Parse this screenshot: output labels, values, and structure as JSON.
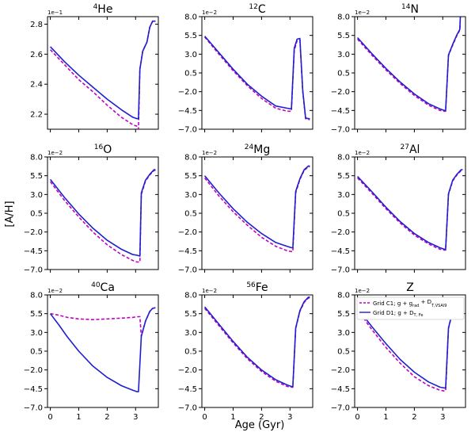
{
  "figure": {
    "xlabel": "Age (Gyr)",
    "ylabel": "[A/H]"
  },
  "legend": {
    "location": "top-right of panel Z",
    "entries": [
      {
        "label_main": "Grid C1; g + g",
        "label_sub1": "rad",
        "label_mid": " + D",
        "label_sub2": "T,VSAl9",
        "color": "#c000c0",
        "dash": "dashed"
      },
      {
        "label_main": "Grid D1; g + D",
        "label_sub1": "T, Fe",
        "label_mid": "",
        "label_sub2": "",
        "color": "#1f1fd0",
        "dash": "solid"
      }
    ]
  },
  "colors": {
    "grid_c1": "#c000c0",
    "grid_d1": "#1f1fd0"
  },
  "chart_data": [
    {
      "type": "line",
      "title_sup": "4",
      "title_base": "He",
      "multiplier": "1e−1",
      "xlim": [
        -0.1,
        3.8
      ],
      "ylim": [
        2.1,
        2.85
      ],
      "yticks": [
        2.2,
        2.4,
        2.6,
        2.8
      ],
      "ytick_labels": [
        "2.2",
        "2.4",
        "2.6",
        "2.8"
      ],
      "xticks": [
        0,
        1,
        2,
        3
      ],
      "xtick_labels": [
        "",
        "",
        "",
        ""
      ],
      "series": [
        {
          "key": "grid_c1",
          "x": [
            0,
            0.5,
            1.0,
            1.5,
            2.0,
            2.5,
            2.9,
            3.05,
            3.1,
            3.15,
            3.25,
            3.4,
            3.5,
            3.6,
            3.7
          ],
          "y": [
            2.63,
            2.53,
            2.43,
            2.35,
            2.26,
            2.18,
            2.13,
            2.12,
            2.1,
            2.5,
            2.62,
            2.68,
            2.78,
            2.82,
            2.82
          ]
        },
        {
          "key": "grid_d1",
          "x": [
            0,
            0.5,
            1.0,
            1.5,
            2.0,
            2.5,
            2.9,
            3.05,
            3.1,
            3.15,
            3.25,
            3.4,
            3.5,
            3.6,
            3.7
          ],
          "y": [
            2.65,
            2.55,
            2.46,
            2.38,
            2.3,
            2.23,
            2.18,
            2.17,
            2.17,
            2.5,
            2.62,
            2.68,
            2.78,
            2.82,
            2.82
          ]
        }
      ]
    },
    {
      "type": "line",
      "title_sup": "12",
      "title_base": "C",
      "multiplier": "1e−2",
      "xlim": [
        -0.1,
        3.8
      ],
      "ylim": [
        -7.0,
        8.0
      ],
      "yticks": [
        -7.0,
        -4.5,
        -2.0,
        0.5,
        3.0,
        5.5,
        8.0
      ],
      "ytick_labels": [
        "−7.0",
        "−4.5",
        "−2.0",
        "0.5",
        "3.0",
        "5.5",
        "8.0"
      ],
      "xticks": [
        0,
        1,
        2,
        3
      ],
      "xtick_labels": [
        "",
        "",
        "",
        ""
      ],
      "series": [
        {
          "key": "grid_c1",
          "x": [
            0,
            0.5,
            1.0,
            1.5,
            2.0,
            2.5,
            2.9,
            3.05,
            3.15,
            3.25,
            3.35,
            3.45,
            3.55,
            3.65,
            3.7
          ],
          "y": [
            5.3,
            3.0,
            0.8,
            -1.2,
            -2.9,
            -4.2,
            -4.6,
            -4.6,
            3.5,
            4.8,
            4.9,
            -2.0,
            -5.6,
            -5.7,
            -5.7
          ]
        },
        {
          "key": "grid_d1",
          "x": [
            0,
            0.5,
            1.0,
            1.5,
            2.0,
            2.5,
            2.9,
            3.05,
            3.15,
            3.25,
            3.35,
            3.45,
            3.55,
            3.65,
            3.7
          ],
          "y": [
            5.4,
            3.2,
            1.0,
            -1.0,
            -2.6,
            -3.9,
            -4.2,
            -4.3,
            3.8,
            5.0,
            5.1,
            -1.8,
            -5.5,
            -5.6,
            -5.6
          ]
        }
      ]
    },
    {
      "type": "line",
      "title_sup": "14",
      "title_base": "N",
      "multiplier": "1e−2",
      "xlim": [
        -0.1,
        3.8
      ],
      "ylim": [
        -7.0,
        8.0
      ],
      "yticks": [
        -7.0,
        -4.5,
        -2.0,
        0.5,
        3.0,
        5.5,
        8.0
      ],
      "ytick_labels": [
        "−7.0",
        "−4.5",
        "−2.0",
        "0.5",
        "3.0",
        "5.5",
        "8.0"
      ],
      "xticks": [
        0,
        1,
        2,
        3
      ],
      "xtick_labels": [
        "",
        "",
        "",
        ""
      ],
      "series": [
        {
          "key": "grid_c1",
          "x": [
            0,
            0.5,
            1.0,
            1.5,
            2.0,
            2.5,
            2.9,
            3.05,
            3.1,
            3.2,
            3.35,
            3.5,
            3.6,
            3.62
          ],
          "y": [
            5.0,
            2.9,
            0.9,
            -0.9,
            -2.5,
            -3.8,
            -4.5,
            -4.6,
            -4.6,
            2.8,
            4.2,
            5.5,
            6.2,
            8.0
          ]
        },
        {
          "key": "grid_d1",
          "x": [
            0,
            0.5,
            1.0,
            1.5,
            2.0,
            2.5,
            2.9,
            3.05,
            3.1,
            3.2,
            3.35,
            3.5,
            3.6,
            3.62
          ],
          "y": [
            5.2,
            3.1,
            1.1,
            -0.7,
            -2.3,
            -3.6,
            -4.3,
            -4.5,
            -4.5,
            2.9,
            4.3,
            5.6,
            6.3,
            8.0
          ]
        }
      ]
    },
    {
      "type": "line",
      "title_sup": "16",
      "title_base": "O",
      "multiplier": "1e−2",
      "xlim": [
        -0.1,
        3.8
      ],
      "ylim": [
        -7.0,
        8.0
      ],
      "yticks": [
        -7.0,
        -4.5,
        -2.0,
        0.5,
        3.0,
        5.5,
        8.0
      ],
      "ytick_labels": [
        "−7.0",
        "−4.5",
        "−2.0",
        "0.5",
        "3.0",
        "5.5",
        "8.0"
      ],
      "xticks": [
        0,
        1,
        2,
        3
      ],
      "xtick_labels": [
        "",
        "",
        "",
        ""
      ],
      "series": [
        {
          "key": "grid_c1",
          "x": [
            0,
            0.5,
            1.0,
            1.5,
            2.0,
            2.5,
            2.9,
            3.05,
            3.15,
            3.2,
            3.35,
            3.5,
            3.65,
            3.7
          ],
          "y": [
            4.7,
            2.2,
            0.0,
            -2.0,
            -3.7,
            -5.0,
            -5.8,
            -6.0,
            -6.0,
            3.0,
            4.8,
            5.6,
            6.2,
            6.2
          ]
        },
        {
          "key": "grid_d1",
          "x": [
            0,
            0.5,
            1.0,
            1.5,
            2.0,
            2.5,
            2.9,
            3.05,
            3.15,
            3.2,
            3.35,
            3.5,
            3.65,
            3.7
          ],
          "y": [
            5.0,
            2.6,
            0.4,
            -1.5,
            -3.1,
            -4.3,
            -5.0,
            -5.1,
            -5.2,
            3.2,
            4.9,
            5.7,
            6.3,
            6.3
          ]
        }
      ]
    },
    {
      "type": "line",
      "title_sup": "24",
      "title_base": "Mg",
      "multiplier": "1e−2",
      "xlim": [
        -0.1,
        3.8
      ],
      "ylim": [
        -7.0,
        8.0
      ],
      "yticks": [
        -7.0,
        -4.5,
        -2.0,
        0.5,
        3.0,
        5.5,
        8.0
      ],
      "ytick_labels": [
        "−7.0",
        "−4.5",
        "−2.0",
        "0.5",
        "3.0",
        "5.5",
        "8.0"
      ],
      "xticks": [
        0,
        1,
        2,
        3
      ],
      "xtick_labels": [
        "",
        "",
        "",
        ""
      ],
      "series": [
        {
          "key": "grid_c1",
          "x": [
            0,
            0.5,
            1.0,
            1.5,
            2.0,
            2.5,
            2.9,
            3.05,
            3.1,
            3.2,
            3.35,
            3.5,
            3.65,
            3.7
          ],
          "y": [
            5.2,
            2.8,
            0.7,
            -1.1,
            -2.7,
            -3.9,
            -4.5,
            -4.6,
            -4.6,
            3.2,
            5.0,
            6.2,
            6.7,
            6.7
          ]
        },
        {
          "key": "grid_d1",
          "x": [
            0,
            0.5,
            1.0,
            1.5,
            2.0,
            2.5,
            2.9,
            3.05,
            3.1,
            3.2,
            3.35,
            3.5,
            3.65,
            3.7
          ],
          "y": [
            5.5,
            3.2,
            1.1,
            -0.7,
            -2.2,
            -3.4,
            -3.9,
            -4.1,
            -4.1,
            3.4,
            5.1,
            6.3,
            6.8,
            6.8
          ]
        }
      ]
    },
    {
      "type": "line",
      "title_sup": "27",
      "title_base": "Al",
      "multiplier": "1e−2",
      "xlim": [
        -0.1,
        3.8
      ],
      "ylim": [
        -7.0,
        8.0
      ],
      "yticks": [
        -7.0,
        -4.5,
        -2.0,
        0.5,
        3.0,
        5.5,
        8.0
      ],
      "ytick_labels": [
        "−7.0",
        "−4.5",
        "−2.0",
        "0.5",
        "3.0",
        "5.5",
        "8.0"
      ],
      "xticks": [
        0,
        1,
        2,
        3
      ],
      "xtick_labels": [
        "",
        "",
        "",
        ""
      ],
      "series": [
        {
          "key": "grid_c1",
          "x": [
            0,
            0.5,
            1.0,
            1.5,
            2.0,
            2.5,
            2.9,
            3.05,
            3.1,
            3.2,
            3.35,
            3.5,
            3.65,
            3.7
          ],
          "y": [
            5.2,
            3.2,
            1.1,
            -0.8,
            -2.4,
            -3.6,
            -4.3,
            -4.4,
            -4.4,
            3.0,
            4.8,
            5.6,
            6.2,
            6.2
          ]
        },
        {
          "key": "grid_d1",
          "x": [
            0,
            0.5,
            1.0,
            1.5,
            2.0,
            2.5,
            2.9,
            3.05,
            3.1,
            3.2,
            3.35,
            3.5,
            3.65,
            3.7
          ],
          "y": [
            5.4,
            3.4,
            1.3,
            -0.6,
            -2.2,
            -3.4,
            -4.1,
            -4.3,
            -4.3,
            3.1,
            4.9,
            5.7,
            6.3,
            6.3
          ]
        }
      ]
    },
    {
      "type": "line",
      "title_sup": "40",
      "title_base": "Ca",
      "multiplier": "1e−2",
      "xlim": [
        -0.1,
        3.8
      ],
      "ylim": [
        -7.0,
        8.0
      ],
      "yticks": [
        -7.0,
        -4.5,
        -2.0,
        0.5,
        3.0,
        5.5,
        8.0
      ],
      "ytick_labels": [
        "−7.0",
        "−4.5",
        "−2.0",
        "0.5",
        "3.0",
        "5.5",
        "8.0"
      ],
      "xticks": [
        0,
        1,
        2,
        3
      ],
      "xtick_labels": [
        "0",
        "1",
        "2",
        "3"
      ],
      "series": [
        {
          "key": "grid_c1",
          "x": [
            0,
            0.3,
            0.6,
            1.0,
            1.5,
            2.0,
            2.5,
            2.9,
            3.05,
            3.15,
            3.2,
            3.35,
            3.5,
            3.6,
            3.7
          ],
          "y": [
            5.5,
            5.3,
            5.0,
            4.8,
            4.7,
            4.8,
            4.9,
            5.0,
            5.1,
            5.1,
            2.5,
            4.5,
            5.8,
            6.2,
            6.3
          ]
        },
        {
          "key": "grid_d1",
          "x": [
            0,
            0.3,
            0.6,
            1.0,
            1.5,
            2.0,
            2.5,
            2.9,
            3.05,
            3.1,
            3.2,
            3.35,
            3.5,
            3.6,
            3.7
          ],
          "y": [
            5.5,
            4.0,
            2.4,
            0.5,
            -1.5,
            -3.0,
            -4.1,
            -4.7,
            -4.9,
            -4.9,
            2.5,
            4.5,
            5.8,
            6.2,
            6.3
          ]
        }
      ]
    },
    {
      "type": "line",
      "title_sup": "56",
      "title_base": "Fe",
      "multiplier": "1e−2",
      "xlim": [
        -0.1,
        3.8
      ],
      "ylim": [
        -7.0,
        8.0
      ],
      "yticks": [
        -7.0,
        -4.5,
        -2.0,
        0.5,
        3.0,
        5.5,
        8.0
      ],
      "ytick_labels": [
        "−7.0",
        "−4.5",
        "−2.0",
        "0.5",
        "3.0",
        "5.5",
        "8.0"
      ],
      "xticks": [
        0,
        1,
        2,
        3
      ],
      "xtick_labels": [
        "0",
        "1",
        "2",
        "3"
      ],
      "series": [
        {
          "key": "grid_c1",
          "x": [
            0,
            0.5,
            1.0,
            1.5,
            2.0,
            2.5,
            2.9,
            3.05,
            3.1,
            3.2,
            3.35,
            3.5,
            3.65,
            3.7
          ],
          "y": [
            6.2,
            3.9,
            1.6,
            -0.5,
            -2.2,
            -3.5,
            -4.2,
            -4.3,
            -4.3,
            3.5,
            5.8,
            7.0,
            7.6,
            7.6
          ]
        },
        {
          "key": "grid_d1",
          "x": [
            0,
            0.5,
            1.0,
            1.5,
            2.0,
            2.5,
            2.9,
            3.05,
            3.1,
            3.2,
            3.35,
            3.5,
            3.65,
            3.7
          ],
          "y": [
            6.4,
            4.1,
            1.8,
            -0.3,
            -2.0,
            -3.3,
            -4.0,
            -4.2,
            -4.2,
            3.6,
            5.9,
            7.1,
            7.7,
            7.7
          ]
        }
      ]
    },
    {
      "type": "line",
      "title_sup": "",
      "title_base": "Z",
      "multiplier": "1e−2",
      "xlim": [
        -0.1,
        3.8
      ],
      "ylim": [
        -7.0,
        8.0
      ],
      "yticks": [
        -7.0,
        -4.5,
        -2.0,
        0.5,
        3.0,
        5.5,
        8.0
      ],
      "ytick_labels": [
        "−7.0",
        "−4.5",
        "−2.0",
        "0.5",
        "3.0",
        "5.5",
        "8.0"
      ],
      "xticks": [
        0,
        1,
        2,
        3
      ],
      "xtick_labels": [
        "0",
        "1",
        "2",
        "3"
      ],
      "series": [
        {
          "key": "grid_c1",
          "x": [
            0,
            0.5,
            1.0,
            1.5,
            2.0,
            2.5,
            2.9,
            3.05,
            3.1,
            3.2,
            3.35,
            3.5,
            3.65,
            3.7
          ],
          "y": [
            6.0,
            3.4,
            1.0,
            -1.1,
            -2.9,
            -4.1,
            -4.7,
            -4.8,
            -4.8,
            3.5,
            5.8,
            7.0,
            7.4,
            7.4
          ]
        },
        {
          "key": "grid_d1",
          "x": [
            0,
            0.5,
            1.0,
            1.5,
            2.0,
            2.5,
            2.9,
            3.05,
            3.1,
            3.2,
            3.35,
            3.5,
            3.65,
            3.7
          ],
          "y": [
            6.2,
            3.8,
            1.5,
            -0.6,
            -2.3,
            -3.6,
            -4.3,
            -4.4,
            -4.4,
            3.6,
            5.9,
            7.1,
            7.5,
            7.5
          ]
        }
      ]
    }
  ]
}
